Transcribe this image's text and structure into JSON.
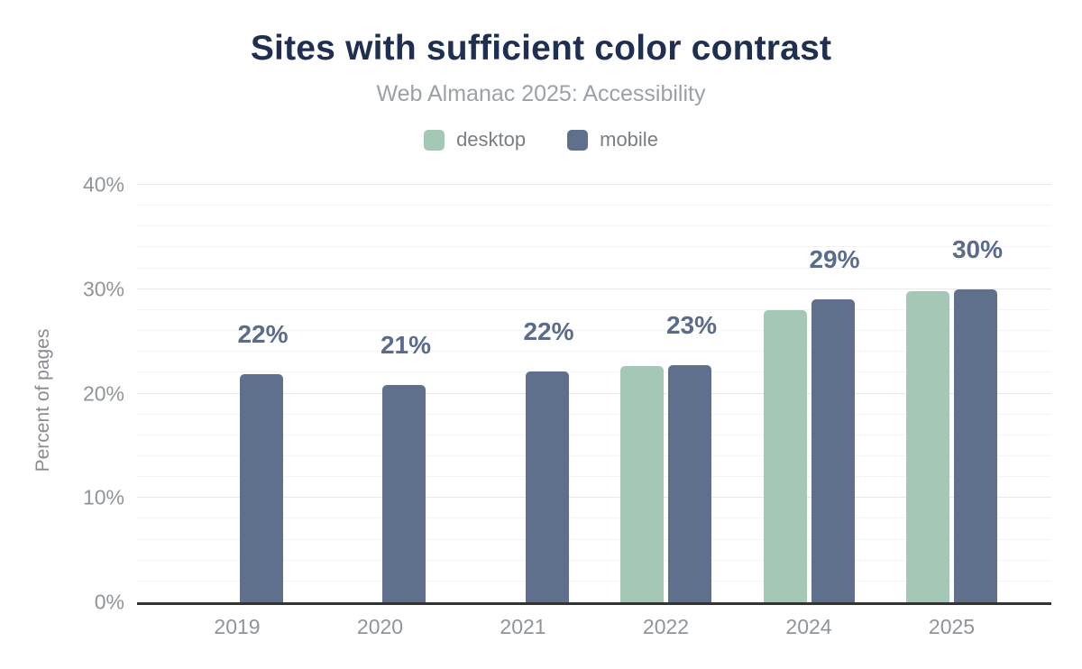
{
  "chart_data": {
    "type": "bar",
    "title": "Sites with sufficient color contrast",
    "subtitle": "Web Almanac 2025: Accessibility",
    "categories": [
      "2019",
      "2020",
      "2021",
      "2022",
      "2024",
      "2025"
    ],
    "series": [
      {
        "name": "desktop",
        "color": "#a5c7b6",
        "values": [
          null,
          null,
          null,
          22.6,
          28.0,
          29.8
        ]
      },
      {
        "name": "mobile",
        "color": "#5e708b",
        "values": [
          21.9,
          20.8,
          22.1,
          22.7,
          29.0,
          30.0
        ]
      }
    ],
    "bar_labels": [
      "22%",
      "21%",
      "22%",
      "23%",
      "29%",
      "30%"
    ],
    "bar_label_series": "mobile",
    "xlabel": "",
    "ylabel": "Percent of pages",
    "ylim": [
      0,
      40
    ],
    "yticks": [
      {
        "value": 0,
        "label": "0%"
      },
      {
        "value": 10,
        "label": "10%"
      },
      {
        "value": 20,
        "label": "20%"
      },
      {
        "value": 30,
        "label": "30%"
      },
      {
        "value": 40,
        "label": "40%"
      }
    ],
    "minor_grid_step": 2,
    "grid": true,
    "legend_position": "top"
  },
  "colors": {
    "title": "#1e2f52",
    "subtitle": "#9aa1a8",
    "tick_label": "#8f9499",
    "data_label": "#5a6b8c",
    "axis_line": "#333333",
    "minor_grid": "#f4f4f4",
    "major_grid": "#e8e8e8",
    "desktop": "#a5c7b6",
    "mobile": "#5e708b"
  }
}
